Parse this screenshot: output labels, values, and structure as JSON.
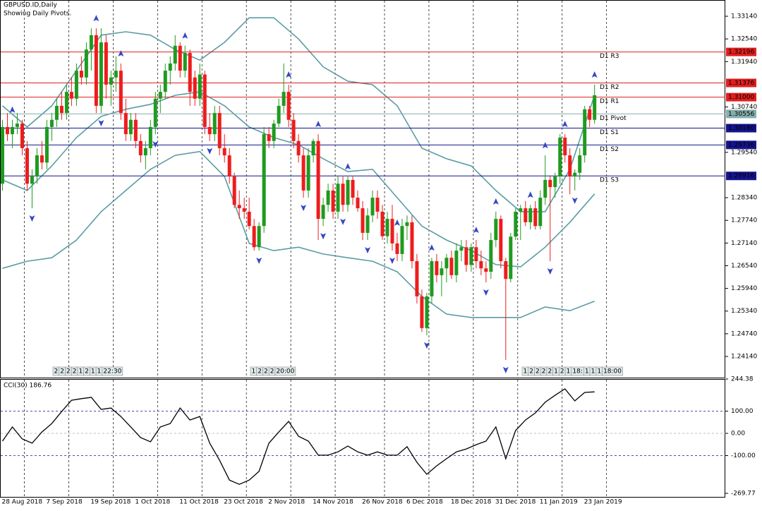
{
  "chart_data": {
    "type": "candlestick",
    "title": "GBPUSD.ID,Daily",
    "subtitle": "Showing Daily Pivots.",
    "up_color": "#1f9a1f",
    "down_color": "#ee1c1c",
    "ohlc": [
      [
        1.2871,
        1.304,
        1.2853,
        1.3021
      ],
      [
        1.3021,
        1.3058,
        1.2984,
        1.3002
      ],
      [
        1.3002,
        1.304,
        1.2965,
        1.3021
      ],
      [
        1.3021,
        1.3058,
        1.3002,
        1.303
      ],
      [
        1.303,
        1.304,
        1.2946,
        1.2965
      ],
      [
        1.2965,
        1.2984,
        1.2853,
        1.2871
      ],
      [
        1.2871,
        1.2909,
        1.2806,
        1.289
      ],
      [
        1.289,
        1.2965,
        1.2871,
        1.2946
      ],
      [
        1.2946,
        1.2984,
        1.2909,
        1.2927
      ],
      [
        1.2927,
        1.304,
        1.2909,
        1.3021
      ],
      [
        1.3021,
        1.3058,
        1.2984,
        1.304
      ],
      [
        1.304,
        1.3096,
        1.3021,
        1.3077
      ],
      [
        1.3077,
        1.3114,
        1.304,
        1.3058
      ],
      [
        1.3058,
        1.3133,
        1.304,
        1.3114
      ],
      [
        1.3114,
        1.3152,
        1.3077,
        1.3096
      ],
      [
        1.3096,
        1.3189,
        1.3077,
        1.317
      ],
      [
        1.317,
        1.3208,
        1.3133,
        1.3152
      ],
      [
        1.3152,
        1.3245,
        1.3133,
        1.3226
      ],
      [
        1.3226,
        1.3282,
        1.317,
        1.3264
      ],
      [
        1.3264,
        1.3282,
        1.3058,
        1.3077
      ],
      [
        1.3077,
        1.3282,
        1.3058,
        1.3245
      ],
      [
        1.3245,
        1.3264,
        1.3096,
        1.3133
      ],
      [
        1.3133,
        1.317,
        1.3077,
        1.3152
      ],
      [
        1.3152,
        1.3208,
        1.3114,
        1.317
      ],
      [
        1.317,
        1.3189,
        1.304,
        1.3058
      ],
      [
        1.3058,
        1.3096,
        1.2984,
        1.3002
      ],
      [
        1.3002,
        1.3058,
        1.2984,
        1.304
      ],
      [
        1.304,
        1.3058,
        1.2965,
        1.2984
      ],
      [
        1.2984,
        1.3002,
        1.2927,
        1.2946
      ],
      [
        1.2946,
        1.2984,
        1.2909,
        1.2965
      ],
      [
        1.2965,
        1.304,
        1.2946,
        1.3021
      ],
      [
        1.3021,
        1.3114,
        1.3002,
        1.3096
      ],
      [
        1.3096,
        1.3133,
        1.3058,
        1.3114
      ],
      [
        1.3114,
        1.3189,
        1.3096,
        1.317
      ],
      [
        1.317,
        1.3208,
        1.3133,
        1.3189
      ],
      [
        1.3189,
        1.3264,
        1.317,
        1.3236
      ],
      [
        1.3236,
        1.3245,
        1.3152,
        1.317
      ],
      [
        1.317,
        1.3236,
        1.3152,
        1.3217
      ],
      [
        1.3217,
        1.3226,
        1.3077,
        1.3114
      ],
      [
        1.3152,
        1.317,
        1.3077,
        1.3096
      ],
      [
        1.3096,
        1.3189,
        1.3077,
        1.316
      ],
      [
        1.316,
        1.317,
        1.3002,
        1.3021
      ],
      [
        1.3021,
        1.3058,
        1.2984,
        1.3002
      ],
      [
        1.3002,
        1.3077,
        1.2984,
        1.3058
      ],
      [
        1.3058,
        1.3077,
        1.2946,
        1.2965
      ],
      [
        1.2965,
        1.3002,
        1.2927,
        1.2946
      ],
      [
        1.2946,
        1.2965,
        1.2871,
        1.289
      ],
      [
        1.289,
        1.29,
        1.2806,
        1.2815
      ],
      [
        1.2815,
        1.2853,
        1.2778,
        1.2806
      ],
      [
        1.2806,
        1.2834,
        1.2778,
        1.2797
      ],
      [
        1.2797,
        1.2834,
        1.275,
        1.2759
      ],
      [
        1.2759,
        1.2778,
        1.2694,
        1.2703
      ],
      [
        1.2703,
        1.2769,
        1.2694,
        1.2759
      ],
      [
        1.2759,
        1.3021,
        1.2741,
        1.3002
      ],
      [
        1.3002,
        1.3021,
        1.2965,
        1.2984
      ],
      [
        1.2984,
        1.304,
        1.2965,
        1.303
      ],
      [
        1.303,
        1.3096,
        1.3021,
        1.3077
      ],
      [
        1.3077,
        1.3189,
        1.3058,
        1.3114
      ],
      [
        1.3114,
        1.3133,
        1.3021,
        1.304
      ],
      [
        1.304,
        1.3058,
        1.2965,
        1.2984
      ],
      [
        1.2984,
        1.3002,
        1.2927,
        1.2946
      ],
      [
        1.2946,
        1.2965,
        1.2834,
        1.2853
      ],
      [
        1.2853,
        1.2965,
        1.2834,
        1.2946
      ],
      [
        1.2946,
        1.299,
        1.2927,
        1.2984
      ],
      [
        1.2984,
        1.3002,
        1.2722,
        1.2778
      ],
      [
        1.2778,
        1.2834,
        1.2759,
        1.2815
      ],
      [
        1.2815,
        1.2871,
        1.2797,
        1.2853
      ],
      [
        1.2853,
        1.2871,
        1.2778,
        1.2797
      ],
      [
        1.2797,
        1.289,
        1.2778,
        1.2871
      ],
      [
        1.2871,
        1.289,
        1.2797,
        1.2815
      ],
      [
        1.2815,
        1.289,
        1.2797,
        1.2881
      ],
      [
        1.2881,
        1.289,
        1.2815,
        1.2834
      ],
      [
        1.2834,
        1.2853,
        1.2797,
        1.2806
      ],
      [
        1.2806,
        1.2825,
        1.2722,
        1.2741
      ],
      [
        1.2741,
        1.2806,
        1.2722,
        1.2787
      ],
      [
        1.2787,
        1.2853,
        1.2769,
        1.2834
      ],
      [
        1.2834,
        1.2853,
        1.2778,
        1.2797
      ],
      [
        1.2797,
        1.2815,
        1.2722,
        1.2732
      ],
      [
        1.2732,
        1.2797,
        1.2713,
        1.2778
      ],
      [
        1.2778,
        1.2815,
        1.2694,
        1.2713
      ],
      [
        1.2713,
        1.2741,
        1.2666,
        1.2685
      ],
      [
        1.2685,
        1.2778,
        1.2666,
        1.2759
      ],
      [
        1.2759,
        1.2787,
        1.2722,
        1.2769
      ],
      [
        1.2769,
        1.2787,
        1.2647,
        1.2666
      ],
      [
        1.2666,
        1.2685,
        1.2554,
        1.2573
      ],
      [
        1.2573,
        1.2591,
        1.2479,
        1.2489
      ],
      [
        1.2489,
        1.2582,
        1.247,
        1.2573
      ],
      [
        1.2573,
        1.2675,
        1.2554,
        1.2666
      ],
      [
        1.2666,
        1.2685,
        1.261,
        1.2629
      ],
      [
        1.2629,
        1.2666,
        1.2573,
        1.2647
      ],
      [
        1.2647,
        1.2685,
        1.261,
        1.2675
      ],
      [
        1.2675,
        1.2694,
        1.2619,
        1.2629
      ],
      [
        1.2629,
        1.2713,
        1.261,
        1.2694
      ],
      [
        1.2694,
        1.2722,
        1.2666,
        1.2703
      ],
      [
        1.2703,
        1.2722,
        1.2638,
        1.2656
      ],
      [
        1.2656,
        1.2713,
        1.2638,
        1.2703
      ],
      [
        1.2703,
        1.2722,
        1.2647,
        1.2666
      ],
      [
        1.2666,
        1.2694,
        1.2629,
        1.2647
      ],
      [
        1.2647,
        1.2666,
        1.261,
        1.2638
      ],
      [
        1.2638,
        1.2741,
        1.2619,
        1.2722
      ],
      [
        1.2722,
        1.2797,
        1.2703,
        1.2778
      ],
      [
        1.2778,
        1.2787,
        1.2647,
        1.2666
      ],
      [
        1.2666,
        1.2675,
        1.2405,
        1.2619
      ],
      [
        1.2619,
        1.2741,
        1.261,
        1.2731
      ],
      [
        1.2731,
        1.2806,
        1.2722,
        1.2797
      ],
      [
        1.2797,
        1.2815,
        1.2722,
        1.2806
      ],
      [
        1.2806,
        1.2825,
        1.2759,
        1.2769
      ],
      [
        1.2769,
        1.2815,
        1.275,
        1.2806
      ],
      [
        1.2806,
        1.2825,
        1.275,
        1.2759
      ],
      [
        1.2759,
        1.2853,
        1.275,
        1.2834
      ],
      [
        1.2834,
        1.2946,
        1.2815,
        1.2881
      ],
      [
        1.2881,
        1.289,
        1.2666,
        1.2862
      ],
      [
        1.2862,
        1.29,
        1.2834,
        1.289
      ],
      [
        1.289,
        1.3002,
        1.2871,
        1.2993
      ],
      [
        1.2993,
        1.3002,
        1.2927,
        1.2946
      ],
      [
        1.2946,
        1.2965,
        1.2843,
        1.289
      ],
      [
        1.289,
        1.2909,
        1.2853,
        1.29
      ],
      [
        1.29,
        1.2965,
        1.2881,
        1.2946
      ],
      [
        1.2946,
        1.3077,
        1.2927,
        1.3068
      ],
      [
        1.3068,
        1.3077,
        1.3021,
        1.304
      ],
      [
        1.304,
        1.3133,
        1.303,
        1.3105
      ]
    ],
    "xlim": [
      -0.5,
      146.5
    ],
    "xticks": [
      {
        "value": 0,
        "label": "28 Aug 2018"
      },
      {
        "value": 9,
        "label": "7 Sep 2018"
      },
      {
        "value": 18,
        "label": "19 Sep 2018"
      },
      {
        "value": 27,
        "label": "1 Oct 2018"
      },
      {
        "value": 36,
        "label": "11 Oct 2018"
      },
      {
        "value": 45,
        "label": "23 Oct 2018"
      },
      {
        "value": 54,
        "label": "2 Nov 2018"
      },
      {
        "value": 63,
        "label": "14 Nov 2018"
      },
      {
        "value": 73,
        "label": "26 Nov 2018"
      },
      {
        "value": 82,
        "label": "6 Dec 2018"
      },
      {
        "value": 91,
        "label": "18 Dec 2018"
      },
      {
        "value": 100,
        "label": "31 Dec 2018"
      },
      {
        "value": 109,
        "label": "11 Jan 2019"
      },
      {
        "value": 118,
        "label": "23 Jan 2019"
      }
    ],
    "grid": true,
    "ylim": [
      1.2358,
      1.3357
    ],
    "yticks": [
      {
        "value": 1.3314,
        "label": "1.33140"
      },
      {
        "value": 1.3254,
        "label": "1.32540"
      },
      {
        "value": 1.3194,
        "label": "1.31940"
      },
      {
        "value": 1.3074,
        "label": "1.30740"
      },
      {
        "value": 1.2954,
        "label": "1.29540"
      },
      {
        "value": 1.2834,
        "label": "1.28340"
      },
      {
        "value": 1.2774,
        "label": "1.27740"
      },
      {
        "value": 1.2714,
        "label": "1.27140"
      },
      {
        "value": 1.2654,
        "label": "1.26540"
      },
      {
        "value": 1.2594,
        "label": "1.25940"
      },
      {
        "value": 1.2534,
        "label": "1.25340"
      },
      {
        "value": 1.2474,
        "label": "1.24740"
      },
      {
        "value": 1.2414,
        "label": "1.24140"
      }
    ],
    "bands": {
      "color": "#5b9ca4",
      "x": [
        0,
        5,
        10,
        15,
        20,
        25,
        30,
        35,
        40,
        45,
        50,
        55,
        60,
        65,
        70,
        75,
        80,
        85,
        90,
        95,
        100,
        105,
        110,
        115,
        120
      ],
      "upper": [
        1.3077,
        1.3021,
        1.3077,
        1.317,
        1.3264,
        1.3273,
        1.3264,
        1.3226,
        1.3198,
        1.3245,
        1.331,
        1.331,
        1.3254,
        1.318,
        1.3142,
        1.3133,
        1.3077,
        1.2965,
        1.2937,
        1.2918,
        1.2853,
        1.2797,
        1.2797,
        1.2909,
        1.3105
      ],
      "middle": [
        1.2881,
        1.2853,
        1.2918,
        1.2993,
        1.3049,
        1.3068,
        1.3081,
        1.3105,
        1.3114,
        1.3077,
        1.3021,
        1.2993,
        1.2974,
        1.2937,
        1.2903,
        1.2909,
        1.2834,
        1.2759,
        1.2722,
        1.2694,
        1.2657,
        1.2651,
        1.2703,
        1.2769,
        1.2844
      ],
      "lower": [
        1.2647,
        1.2666,
        1.2675,
        1.2722,
        1.2797,
        1.2853,
        1.2909,
        1.2946,
        1.2956,
        1.289,
        1.2713,
        1.2694,
        1.2703,
        1.2685,
        1.2675,
        1.2666,
        1.2638,
        1.2573,
        1.2526,
        1.2517,
        1.2517,
        1.2517,
        1.2545,
        1.2535,
        1.256
      ]
    },
    "pivots": [
      {
        "name": "D1 R3",
        "value": 1.32196,
        "label": "1.32196",
        "color": "#e01e1e"
      },
      {
        "name": "D1 R2",
        "value": 1.31376,
        "label": "1.31376",
        "color": "#e01e1e"
      },
      {
        "name": "D1 R1",
        "value": 1.31,
        "label": "1.31000",
        "color": "#e01e1e"
      },
      {
        "name": "D1 Pivot",
        "value": 1.30556,
        "label": "1.30556",
        "color": "#86aeae"
      },
      {
        "name": "D1 S1",
        "value": 1.3018,
        "label": "1.30180",
        "color": "#14148c"
      },
      {
        "name": "D1 S2",
        "value": 1.29736,
        "label": "1.29736",
        "color": "#14148c"
      },
      {
        "name": "D1 S3",
        "value": 1.28916,
        "label": "1.28916",
        "color": "#14148c"
      }
    ],
    "fractals": {
      "color": "#3347c4",
      "up": [
        2,
        19,
        24,
        37,
        58,
        64,
        70,
        80,
        87,
        96,
        100,
        107,
        110,
        114,
        120
      ],
      "down": [
        6,
        20,
        31,
        42,
        52,
        61,
        65,
        69,
        74,
        79,
        86,
        98,
        102,
        111,
        116
      ]
    },
    "time_markers": [
      [
        "2",
        "2",
        "2",
        "2",
        "1",
        "2",
        "1",
        "1",
        "22:30"
      ],
      [
        "1",
        "2",
        "2",
        "2",
        "20:00"
      ],
      [
        "1",
        "2",
        "2",
        "2",
        "2",
        "1",
        "2",
        "1",
        "18:",
        "1",
        "1",
        "1",
        "18:00"
      ]
    ],
    "cci": {
      "label": "CCI(30) 186.76",
      "color": "#000000",
      "x": [
        0,
        2,
        4,
        6,
        8,
        10,
        12,
        14,
        16,
        18,
        20,
        22,
        24,
        26,
        28,
        30,
        32,
        34,
        36,
        38,
        40,
        42,
        44,
        46,
        48,
        50,
        52,
        54,
        56,
        58,
        60,
        62,
        64,
        66,
        68,
        70,
        72,
        74,
        76,
        78,
        80,
        82,
        84,
        86,
        88,
        90,
        92,
        94,
        96,
        98,
        100,
        102,
        104,
        106,
        108,
        110,
        112,
        114,
        116,
        118,
        120
      ],
      "values": [
        -35,
        29,
        -25,
        -44,
        6,
        44,
        98,
        149,
        156,
        162,
        108,
        114,
        76,
        29,
        -19,
        -38,
        29,
        44,
        114,
        60,
        76,
        -44,
        -121,
        -210,
        -229,
        -210,
        -171,
        -44,
        6,
        54,
        -13,
        -35,
        -98,
        -98,
        -83,
        -57,
        -83,
        -98,
        -83,
        -98,
        -98,
        -60,
        -130,
        -184,
        -146,
        -114,
        -83,
        -70,
        -51,
        -35,
        29,
        -114,
        13,
        60,
        92,
        140,
        171,
        200,
        146,
        184,
        186.76
      ],
      "ylim": [
        -269.77,
        244.38
      ],
      "yticks": [
        {
          "value": 244.38,
          "label": "244.38"
        },
        {
          "value": 100,
          "label": "100.00"
        },
        {
          "value": 0,
          "label": "0.00"
        },
        {
          "value": -100,
          "label": "-100.00"
        },
        {
          "value": -269.77,
          "label": "-269.77"
        }
      ]
    }
  }
}
